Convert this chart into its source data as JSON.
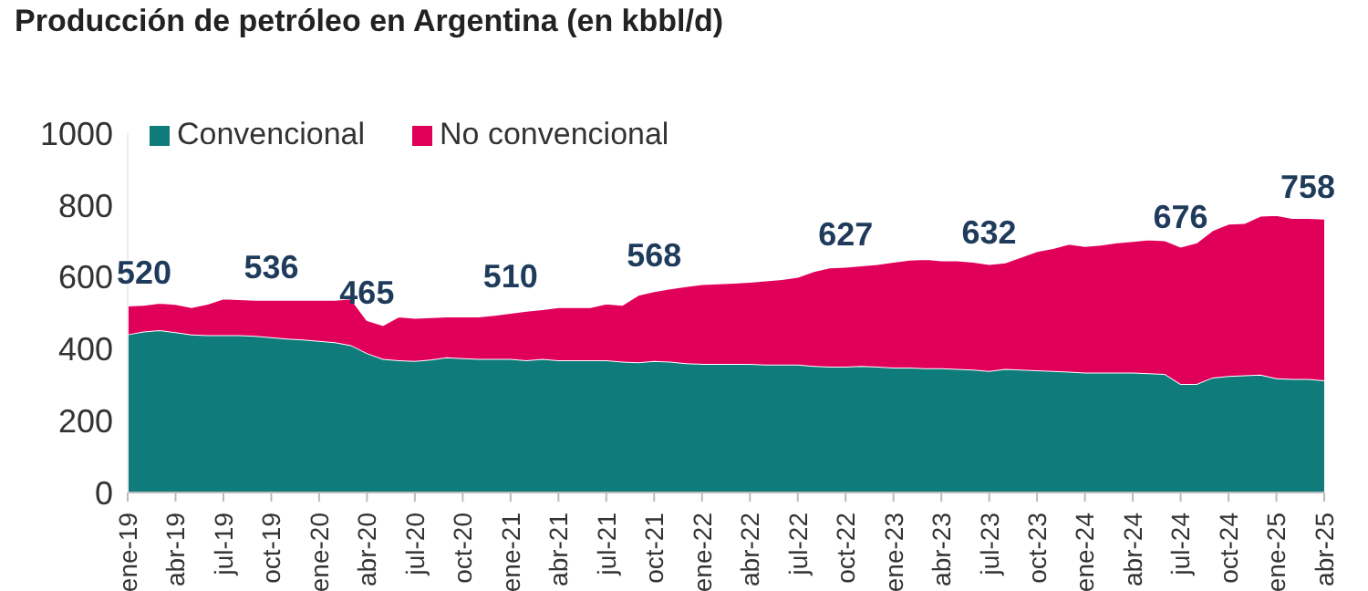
{
  "chart_data": {
    "type": "area",
    "stacked": true,
    "title": "Producción de petróleo en Argentina (en kbbl/d)",
    "categories": [
      "ene-19",
      null,
      null,
      "abr-19",
      null,
      null,
      "jul-19",
      null,
      null,
      "oct-19",
      null,
      null,
      "ene-20",
      null,
      null,
      "abr-20",
      null,
      null,
      "jul-20",
      null,
      null,
      "oct-20",
      null,
      null,
      "ene-21",
      null,
      null,
      "abr-21",
      null,
      null,
      "jul-21",
      null,
      null,
      "oct-21",
      null,
      null,
      "ene-22",
      null,
      null,
      "abr-22",
      null,
      null,
      "jul-22",
      null,
      null,
      "oct-22",
      null,
      null,
      "ene-23",
      null,
      null,
      "abr-23",
      null,
      null,
      "jul-23",
      null,
      null,
      "oct-23",
      null,
      null,
      "ene-24",
      null,
      null,
      "abr-24",
      null,
      null,
      "jul-24",
      null,
      null,
      "oct-24",
      null,
      null,
      "ene-25",
      null,
      null,
      "abr-25"
    ],
    "series": [
      {
        "name": "Convencional",
        "color": "#0f7b7b",
        "values": [
          440,
          448,
          452,
          446,
          440,
          438,
          438,
          438,
          436,
          432,
          428,
          426,
          422,
          418,
          410,
          388,
          372,
          368,
          366,
          370,
          376,
          374,
          372,
          372,
          372,
          368,
          372,
          368,
          368,
          368,
          368,
          364,
          362,
          366,
          364,
          360,
          358,
          358,
          358,
          358,
          356,
          356,
          356,
          352,
          350,
          350,
          352,
          350,
          348,
          348,
          346,
          346,
          344,
          342,
          338,
          344,
          342,
          340,
          338,
          336,
          334,
          334,
          334,
          334,
          332,
          330,
          302,
          302,
          320,
          324,
          326,
          328,
          318,
          316,
          316,
          312
        ]
      },
      {
        "name": "No convencional",
        "color": "#e0005a",
        "values": [
          80,
          74,
          76,
          79,
          76,
          87,
          102,
          100,
          100,
          104,
          108,
          110,
          114,
          118,
          130,
          92,
          94,
          122,
          120,
          118,
          114,
          116,
          118,
          122,
          128,
          138,
          138,
          148,
          148,
          148,
          158,
          158,
          188,
          194,
          204,
          214,
          222,
          224,
          226,
          228,
          234,
          238,
          244,
          264,
          276,
          278,
          280,
          286,
          294,
          300,
          304,
          300,
          302,
          300,
          298,
          296,
          314,
          332,
          342,
          356,
          352,
          356,
          362,
          366,
          372,
          372,
          382,
          394,
          410,
          424,
          424,
          442,
          454,
          448,
          448,
          450
        ]
      }
    ],
    "ylim": [
      0,
      1000
    ],
    "yticks": [
      0,
      200,
      400,
      600,
      800,
      1000
    ],
    "grid": false,
    "legend": "top left",
    "annotations": [
      {
        "text": "520",
        "x": "ene-19",
        "y": 520
      },
      {
        "text": "536",
        "x": "oct-19",
        "y": 536
      },
      {
        "text": "465",
        "x": "abr-20",
        "y": 465
      },
      {
        "text": "510",
        "x": "ene-21",
        "y": 510
      },
      {
        "text": "568",
        "x": "oct-21",
        "y": 568
      },
      {
        "text": "627",
        "x": "oct-22",
        "y": 627
      },
      {
        "text": "632",
        "x": "jul-23",
        "y": 632
      },
      {
        "text": "676",
        "x": "jul-24",
        "y": 676
      },
      {
        "text": "758",
        "x": "abr-25",
        "y": 758
      }
    ]
  }
}
